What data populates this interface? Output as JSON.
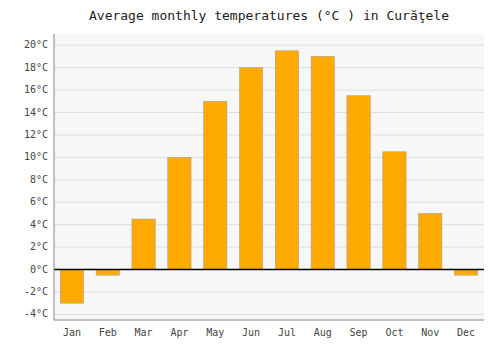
{
  "chart_data": {
    "type": "bar",
    "title": "Average monthly temperatures (°C ) in Curăţele",
    "categories": [
      "Jan",
      "Feb",
      "Mar",
      "Apr",
      "May",
      "Jun",
      "Jul",
      "Aug",
      "Sep",
      "Oct",
      "Nov",
      "Dec"
    ],
    "values": [
      -3.0,
      -0.5,
      4.5,
      10.0,
      15.0,
      18.0,
      19.5,
      19.0,
      15.5,
      10.5,
      5.0,
      -0.5
    ],
    "color": "#FFAA00",
    "ylim": [
      -4.5,
      21
    ],
    "yticks": [
      {
        "value": -4,
        "label": "-4°C"
      },
      {
        "value": -2,
        "label": "-2°C"
      },
      {
        "value": 0,
        "label": "0°C"
      },
      {
        "value": 2,
        "label": "2°C"
      },
      {
        "value": 4,
        "label": "4°C"
      },
      {
        "value": 6,
        "label": "6°C"
      },
      {
        "value": 8,
        "label": "8°C"
      },
      {
        "value": 10,
        "label": "10°C"
      },
      {
        "value": 12,
        "label": "12°C"
      },
      {
        "value": 14,
        "label": "14°C"
      },
      {
        "value": 16,
        "label": "16°C"
      },
      {
        "value": 18,
        "label": "18°C"
      },
      {
        "value": 20,
        "label": "20°C"
      }
    ],
    "grid": true
  }
}
